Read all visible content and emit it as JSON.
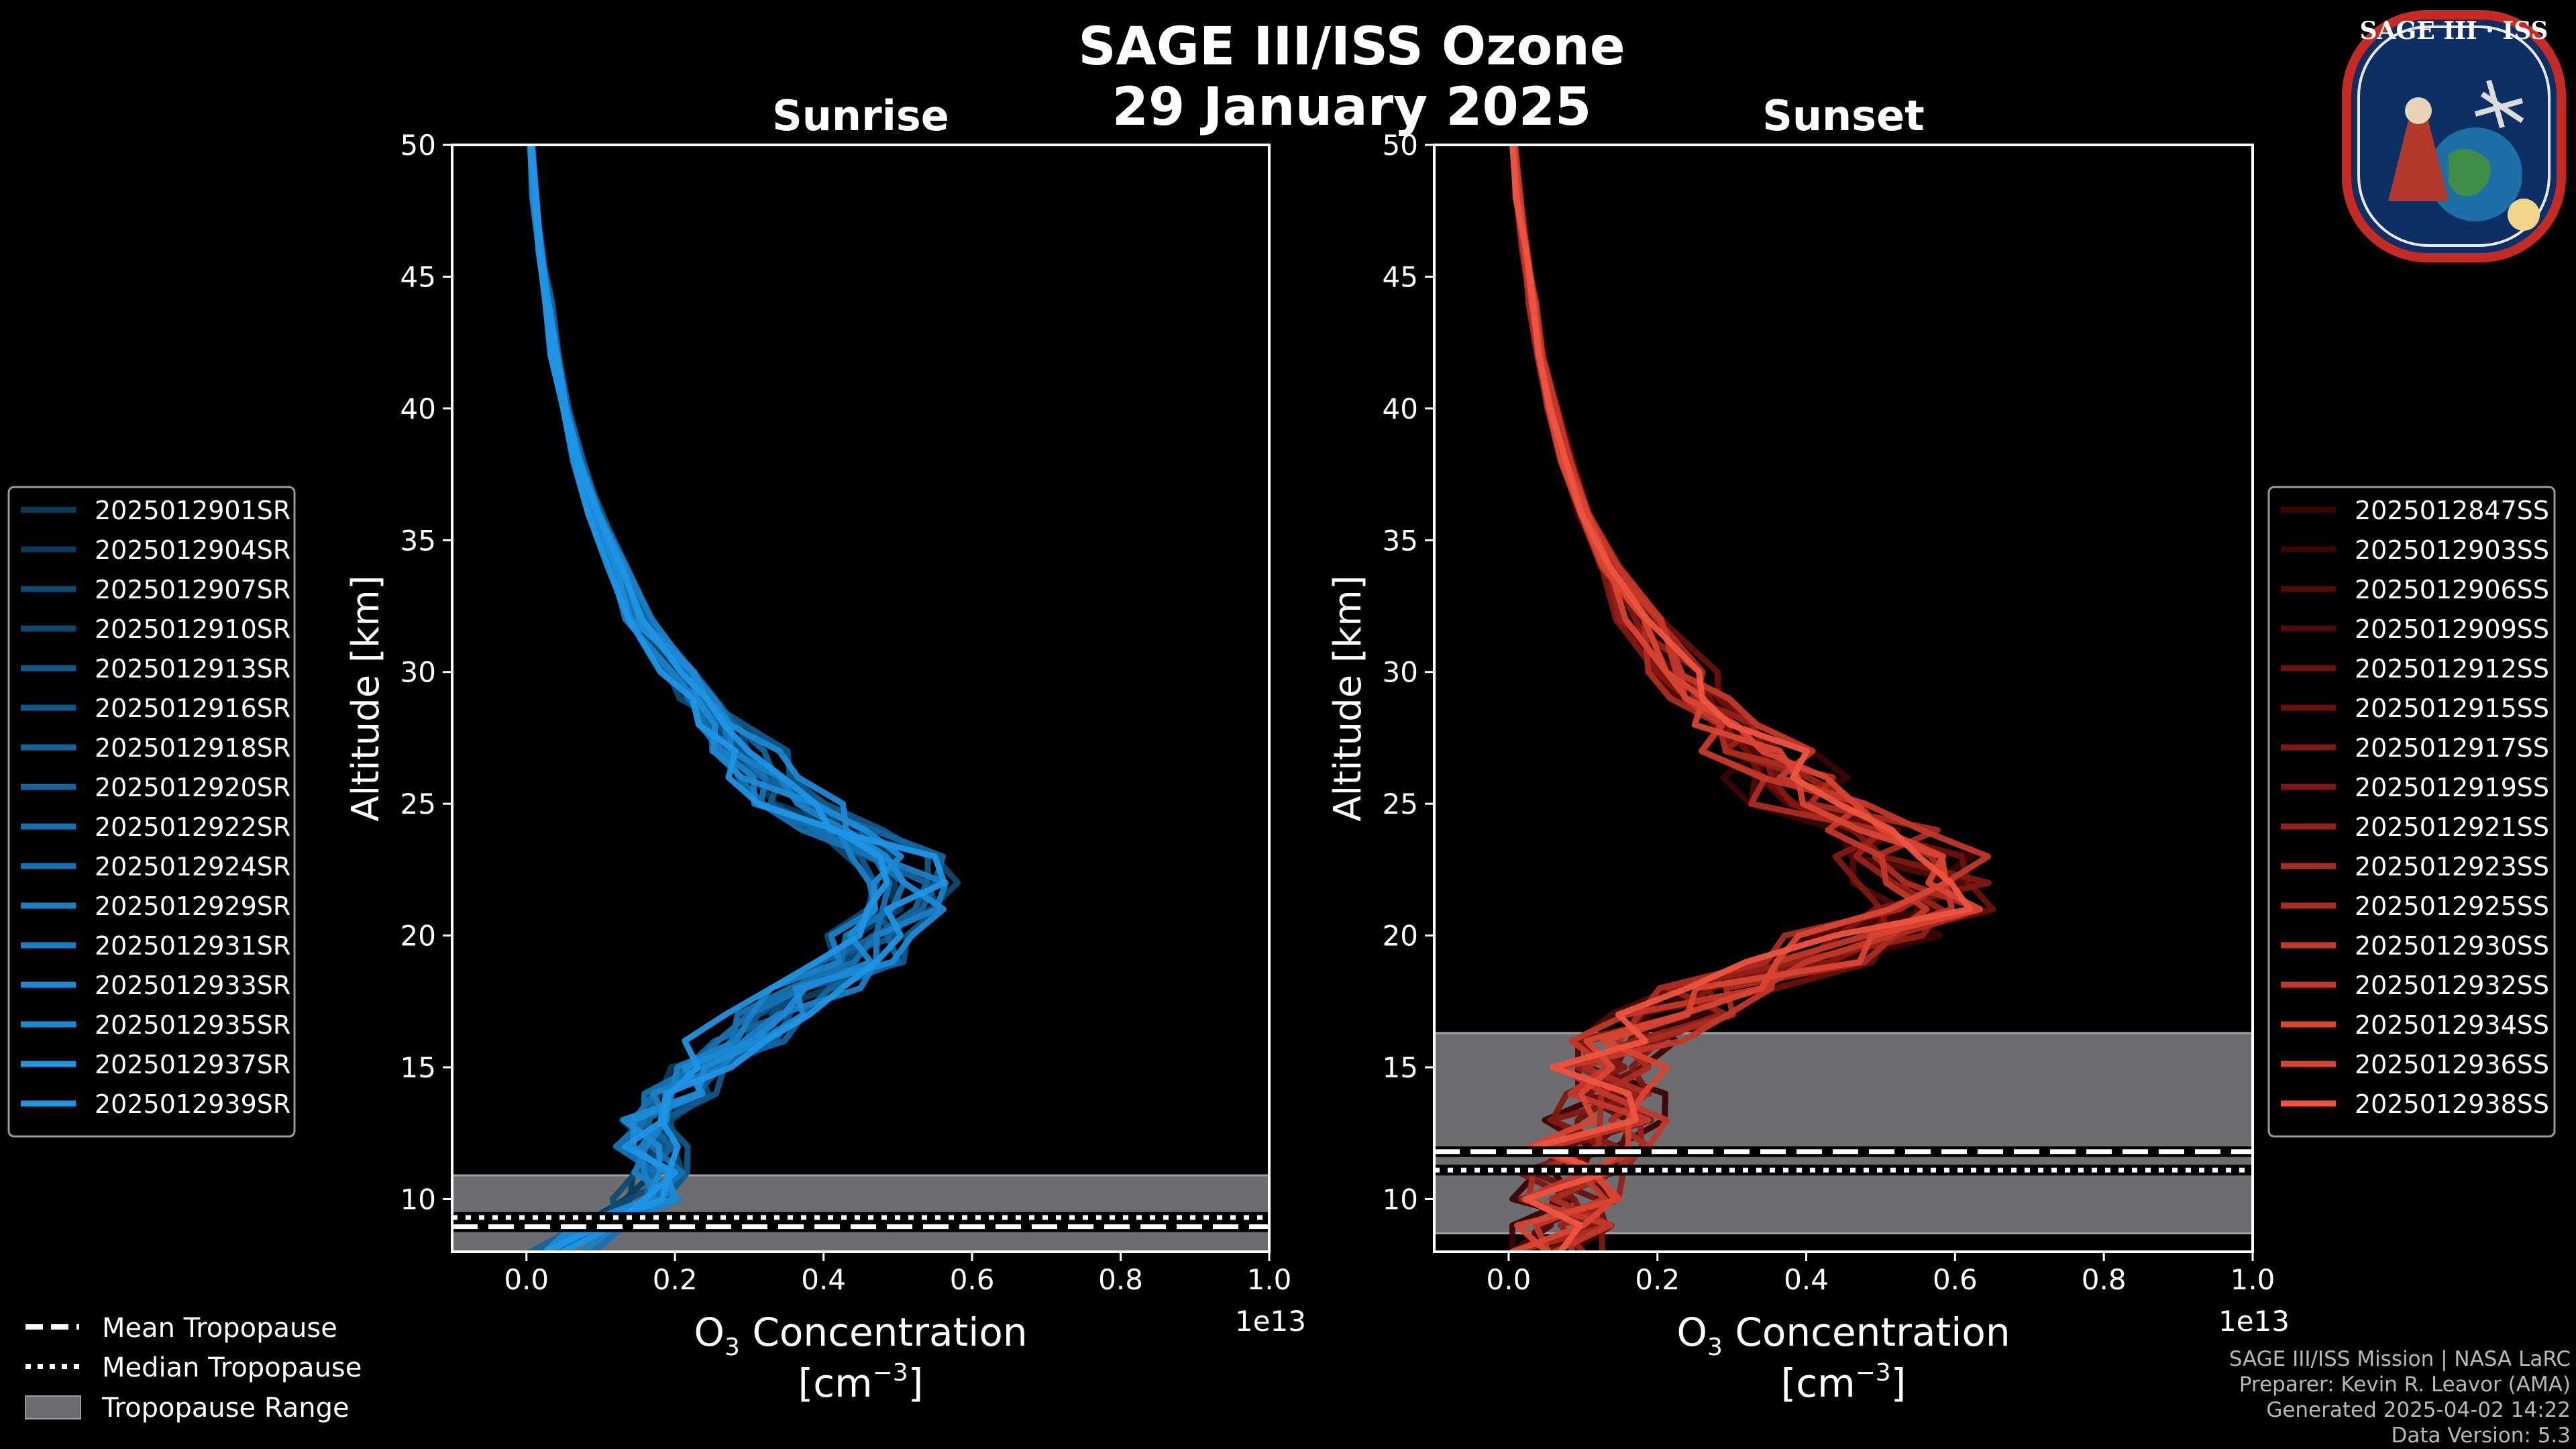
{
  "figure": {
    "title_line1": "SAGE III/ISS Ozone",
    "title_line2": "29 January 2025",
    "logo_text": "SAGE III · ISS",
    "footer": [
      "SAGE III/ISS Mission | NASA LaRC",
      "Preparer: Kevin R. Leavor (AMA)",
      "Generated 2025-04-02 14:22",
      "Data Version: 5.3"
    ],
    "tropopause_legend": [
      {
        "label": "Mean Tropopause",
        "style": "dashed"
      },
      {
        "label": "Median Tropopause",
        "style": "dotted"
      },
      {
        "label": "Tropopause Range",
        "style": "patch"
      }
    ]
  },
  "chart_data": [
    {
      "type": "line",
      "title": "Sunrise",
      "xlabel_main": "O",
      "xlabel_sub": "3",
      "xlabel_rest": " Concentration",
      "xlabel_unit_open": "[cm",
      "xlabel_unit_sup": "−3",
      "xlabel_unit_close": "]",
      "ylabel": "Altitude [km]",
      "x_offset_label": "1e13",
      "xlim": [
        -0.1,
        1.0
      ],
      "ylim": [
        8,
        50
      ],
      "xticks": [
        "0.0",
        "0.2",
        "0.4",
        "0.6",
        "0.8",
        "1.0"
      ],
      "yticks": [
        "10",
        "15",
        "20",
        "25",
        "30",
        "35",
        "40",
        "45",
        "50"
      ],
      "tropopause": {
        "min": 8.0,
        "max": 10.9,
        "mean": 8.95,
        "median": 9.3
      },
      "series_colors": [
        "#0b3b5c",
        "#0e4a73",
        "#10588a",
        "#13659e",
        "#1572b2",
        "#1a80c6",
        "#1c8ad6",
        "#1f95e6"
      ],
      "series": [
        {
          "name": "2025012901SR"
        },
        {
          "name": "2025012904SR"
        },
        {
          "name": "2025012907SR"
        },
        {
          "name": "2025012910SR"
        },
        {
          "name": "2025012913SR"
        },
        {
          "name": "2025012916SR"
        },
        {
          "name": "2025012918SR"
        },
        {
          "name": "2025012920SR"
        },
        {
          "name": "2025012922SR"
        },
        {
          "name": "2025012924SR"
        },
        {
          "name": "2025012929SR"
        },
        {
          "name": "2025012931SR"
        },
        {
          "name": "2025012933SR"
        },
        {
          "name": "2025012935SR"
        },
        {
          "name": "2025012937SR"
        },
        {
          "name": "2025012939SR"
        }
      ],
      "base_profile": {
        "altitude": [
          8,
          9,
          10,
          11,
          12,
          13,
          14,
          15,
          16,
          17,
          18,
          19,
          20,
          21,
          22,
          23,
          24,
          25,
          26,
          27,
          28,
          29,
          30,
          32,
          34,
          36,
          38,
          40,
          42,
          44,
          46,
          48,
          50
        ],
        "o3": [
          0.05,
          0.11,
          0.16,
          0.18,
          0.17,
          0.17,
          0.2,
          0.24,
          0.29,
          0.34,
          0.39,
          0.44,
          0.48,
          0.51,
          0.52,
          0.49,
          0.43,
          0.38,
          0.34,
          0.3,
          0.27,
          0.24,
          0.21,
          0.16,
          0.125,
          0.095,
          0.07,
          0.053,
          0.04,
          0.03,
          0.02,
          0.012,
          0.005
        ]
      }
    },
    {
      "type": "line",
      "title": "Sunset",
      "xlabel_main": "O",
      "xlabel_sub": "3",
      "xlabel_rest": " Concentration",
      "xlabel_unit_open": "[cm",
      "xlabel_unit_sup": "−3",
      "xlabel_unit_close": "]",
      "ylabel": "Altitude [km]",
      "x_offset_label": "1e13",
      "xlim": [
        -0.1,
        1.0
      ],
      "ylim": [
        8,
        50
      ],
      "xticks": [
        "0.0",
        "0.2",
        "0.4",
        "0.6",
        "0.8",
        "1.0"
      ],
      "yticks": [
        "10",
        "15",
        "20",
        "25",
        "30",
        "35",
        "40",
        "45",
        "50"
      ],
      "tropopause": {
        "min": 8.7,
        "max": 16.3,
        "mean": 11.8,
        "median": 11.1
      },
      "series_colors": [
        "#3a0503",
        "#520b07",
        "#6a120c",
        "#7f1912",
        "#962219",
        "#ab2c21",
        "#c2382a",
        "#d94433",
        "#ef5440"
      ],
      "series": [
        {
          "name": "2025012847SS"
        },
        {
          "name": "2025012903SS"
        },
        {
          "name": "2025012906SS"
        },
        {
          "name": "2025012909SS"
        },
        {
          "name": "2025012912SS"
        },
        {
          "name": "2025012915SS"
        },
        {
          "name": "2025012917SS"
        },
        {
          "name": "2025012919SS"
        },
        {
          "name": "2025012921SS"
        },
        {
          "name": "2025012923SS"
        },
        {
          "name": "2025012925SS"
        },
        {
          "name": "2025012930SS"
        },
        {
          "name": "2025012932SS"
        },
        {
          "name": "2025012934SS"
        },
        {
          "name": "2025012936SS"
        },
        {
          "name": "2025012938SS"
        }
      ],
      "base_profile": {
        "altitude": [
          8,
          9,
          10,
          11,
          12,
          13,
          14,
          15,
          16,
          17,
          18,
          19,
          20,
          21,
          22,
          23,
          24,
          25,
          26,
          27,
          28,
          29,
          30,
          32,
          34,
          36,
          38,
          40,
          42,
          44,
          46,
          48,
          50
        ],
        "o3": [
          0.05,
          0.06,
          0.08,
          0.1,
          0.12,
          0.13,
          0.13,
          0.14,
          0.17,
          0.22,
          0.3,
          0.4,
          0.5,
          0.57,
          0.6,
          0.56,
          0.5,
          0.44,
          0.39,
          0.35,
          0.31,
          0.27,
          0.24,
          0.18,
          0.14,
          0.105,
          0.08,
          0.06,
          0.045,
          0.033,
          0.023,
          0.013,
          0.006
        ]
      }
    }
  ]
}
